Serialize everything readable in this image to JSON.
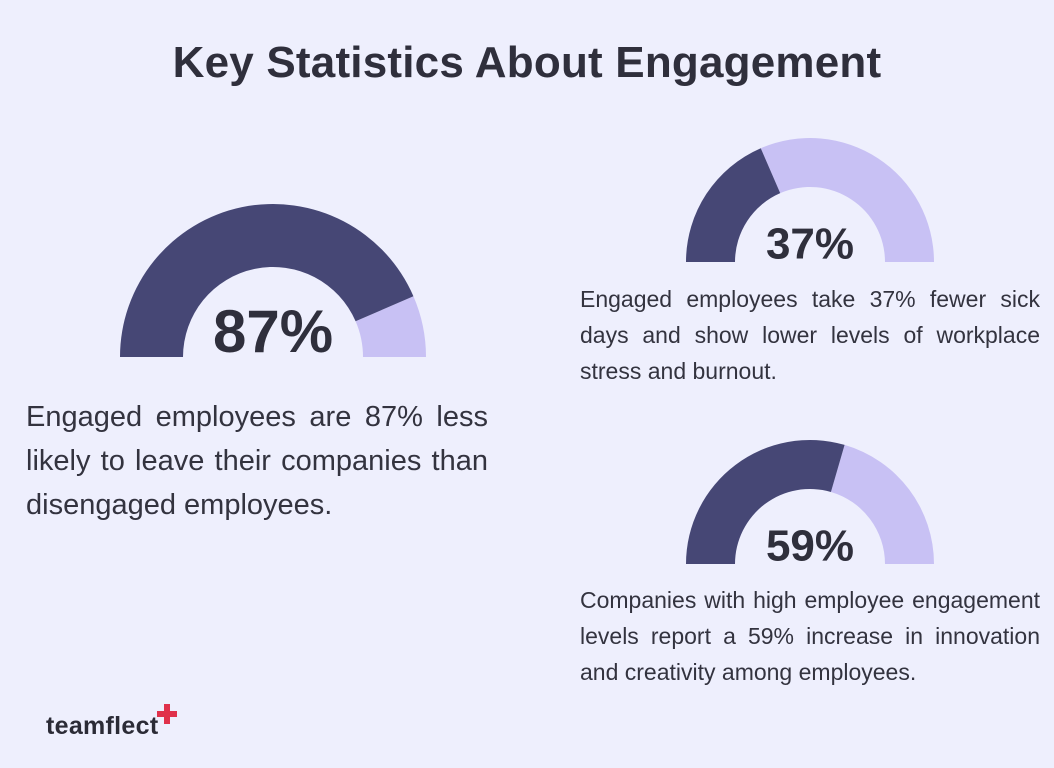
{
  "title": "Key Statistics About Engagement",
  "colors": {
    "background": "#eeeffd",
    "filled": "#464775",
    "remaining": "#c8c1f4",
    "accent": "#e0314b"
  },
  "logo": {
    "text": "teamflect",
    "icon": "plus-icon"
  },
  "chart_data": [
    {
      "type": "gauge",
      "value": 87,
      "max": 100,
      "value_label": "87%",
      "description": "Engaged employees are 87% less likely to leave their companies than disengaged employees."
    },
    {
      "type": "gauge",
      "value": 37,
      "max": 100,
      "value_label": "37%",
      "description": "Engaged employees take 37% fewer sick days and show lower levels of workplace stress and burnout."
    },
    {
      "type": "gauge",
      "value": 59,
      "max": 100,
      "value_label": "59%",
      "description": "Companies with high employee engagement levels report a 59% increase in innovation and creativity among employees."
    }
  ]
}
